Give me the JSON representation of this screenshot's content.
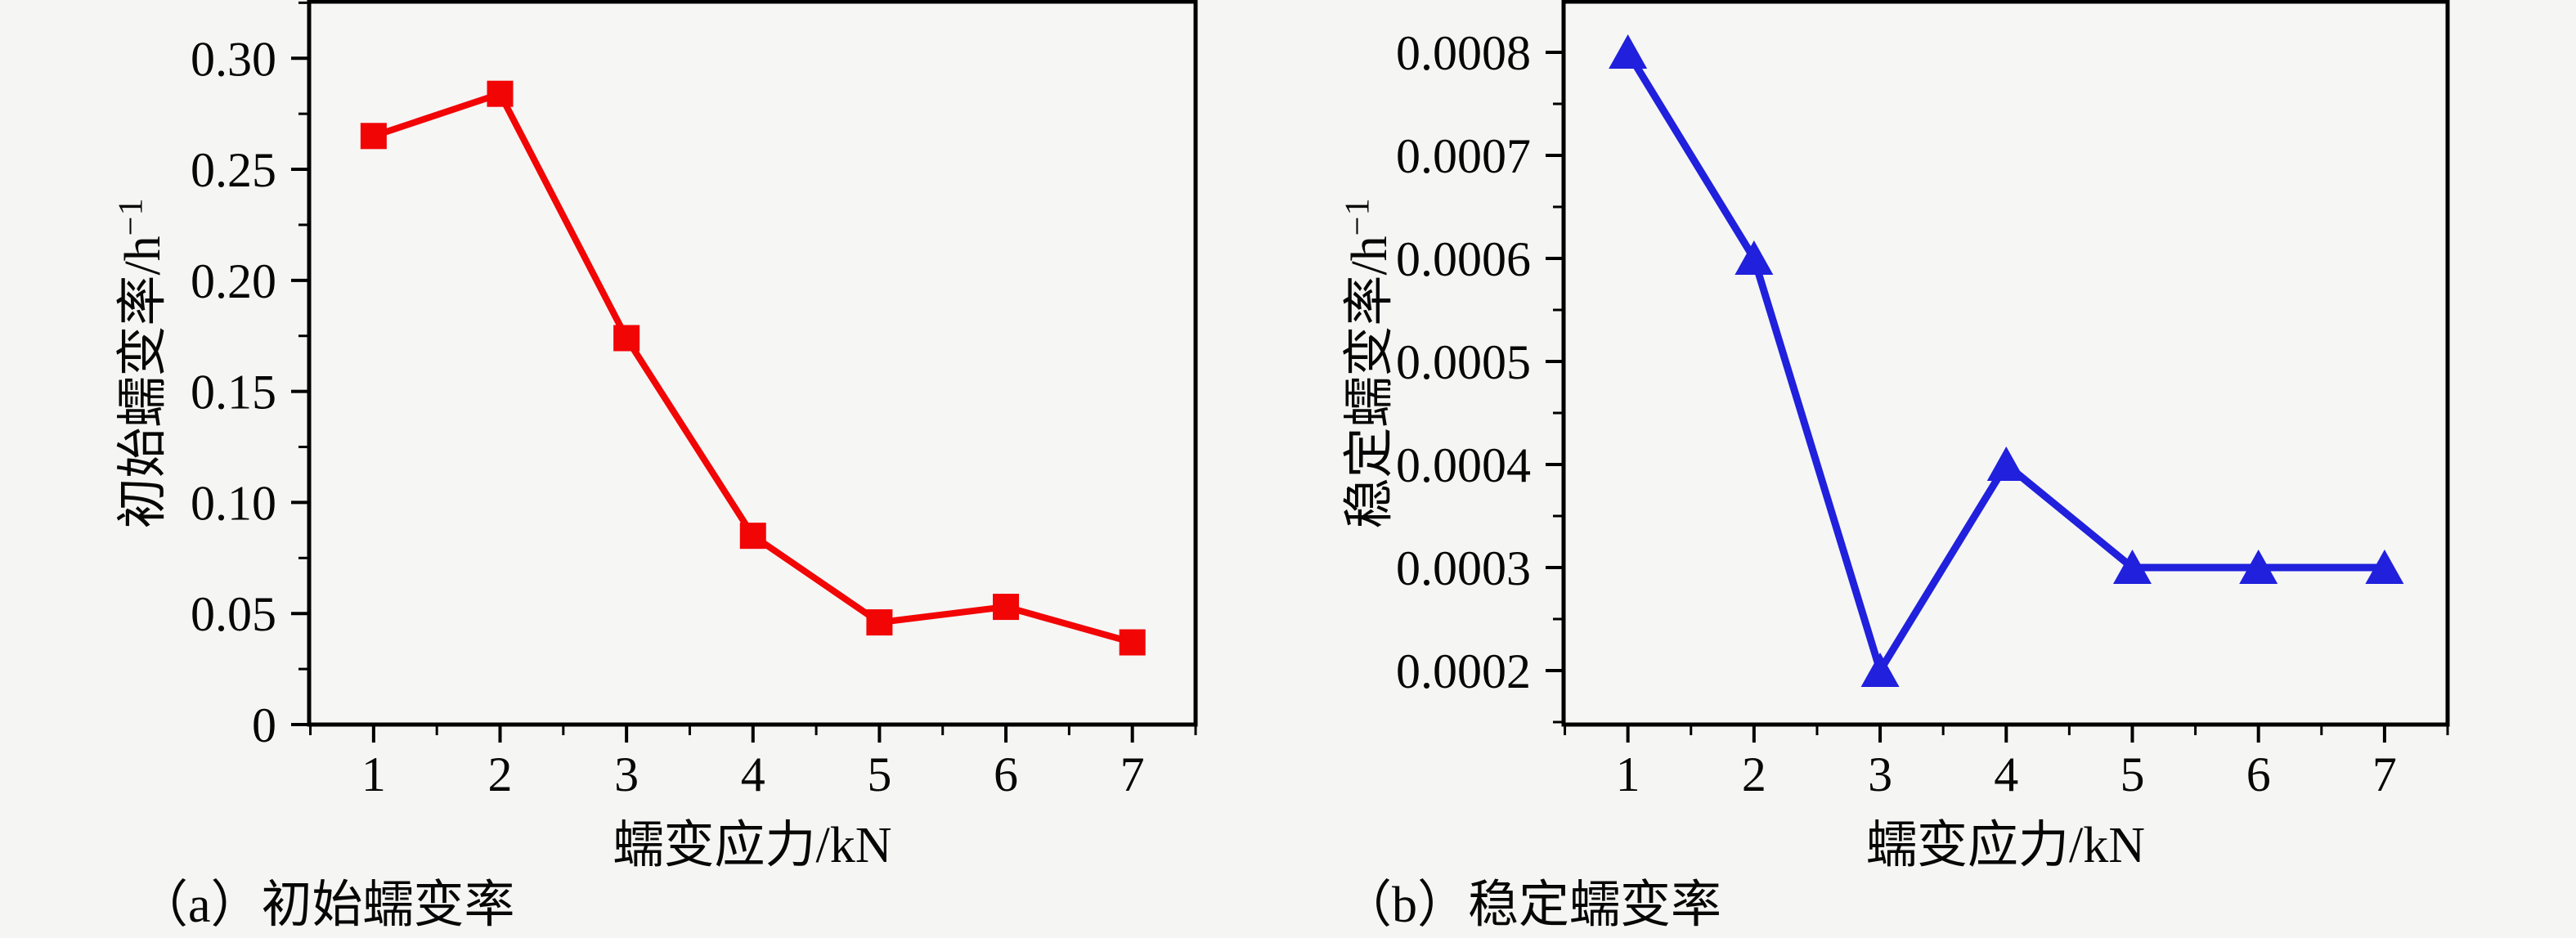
{
  "figure": {
    "background_color": "#f5f5f4",
    "axis_color": "#000000",
    "text_color": "#070707"
  },
  "chart_data": [
    {
      "id": "a",
      "type": "line",
      "caption": "（a）初始蠕变率",
      "xlabel": "蠕变应力/kN",
      "ylabel": "初始蠕变率/h⁻¹",
      "ylabel_base": "初始蠕变率/h",
      "ylabel_sup": "−1",
      "x": [
        1,
        2,
        3,
        4,
        5,
        6,
        7
      ],
      "values": [
        0.265,
        0.284,
        0.174,
        0.085,
        0.046,
        0.053,
        0.037
      ],
      "series_color": "#f20505",
      "marker": "square",
      "line_width": 8,
      "xlim": [
        0.49,
        7.5
      ],
      "ylim": [
        0,
        0.3255
      ],
      "xticks": [
        1,
        2,
        3,
        4,
        5,
        6,
        7
      ],
      "xtick_labels": [
        "1",
        "2",
        "3",
        "4",
        "5",
        "6",
        "7"
      ],
      "yticks": [
        0,
        0.05,
        0.1,
        0.15,
        0.2,
        0.25,
        0.3
      ],
      "ytick_labels": [
        "0",
        "0.05",
        "0.10",
        "0.15",
        "0.20",
        "0.25",
        "0.30"
      ],
      "grid": false,
      "legend": "none"
    },
    {
      "id": "b",
      "type": "line",
      "caption": "（b）稳定蠕变率",
      "xlabel": "蠕变应力/kN",
      "ylabel": "稳定蠕变率/h⁻¹",
      "ylabel_base": "稳定蠕变率/h",
      "ylabel_sup": "−1",
      "x": [
        1,
        2,
        3,
        4,
        5,
        6,
        7
      ],
      "values": [
        0.0008,
        0.0006,
        0.0002,
        0.0004,
        0.0003,
        0.0003,
        0.0003
      ],
      "series_color": "#2020dd",
      "marker": "triangle",
      "line_width": 9,
      "xlim": [
        0.49,
        7.5
      ],
      "ylim": [
        0.0001476,
        0.0008492
      ],
      "xticks": [
        1,
        2,
        3,
        4,
        5,
        6,
        7
      ],
      "xtick_labels": [
        "1",
        "2",
        "3",
        "4",
        "5",
        "6",
        "7"
      ],
      "yticks": [
        0.0002,
        0.0003,
        0.0004,
        0.0005,
        0.0006,
        0.0007,
        0.0008
      ],
      "ytick_labels": [
        "0.0002",
        "0.0003",
        "0.0004",
        "0.0005",
        "0.0006",
        "0.0007",
        "0.0008"
      ],
      "grid": false,
      "legend": "none"
    }
  ]
}
